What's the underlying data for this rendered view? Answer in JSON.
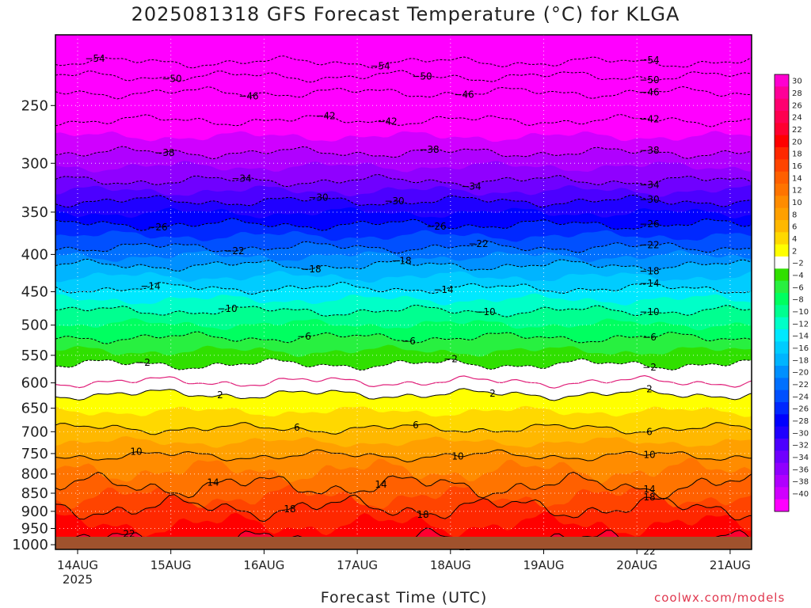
{
  "title": "2025081318 GFS Forecast Temperature (°C) for KLGA",
  "xlabel": "Forecast Time (UTC)",
  "credit": "coolwx.com/models",
  "chart_data": {
    "type": "heatmap",
    "title": "2025081318 GFS Forecast Temperature (°C) for KLGA",
    "xlabel": "Forecast Time (UTC)",
    "ylabel": "",
    "x_ticks": [
      "14AUG",
      "15AUG",
      "16AUG",
      "17AUG",
      "18AUG",
      "19AUG",
      "20AUG",
      "21AUG"
    ],
    "x_subtick": "2025",
    "x_range": [
      "2025-08-13 18Z",
      "2025-08-21 06Z"
    ],
    "y_ticks": [
      250,
      300,
      350,
      400,
      450,
      500,
      550,
      600,
      650,
      700,
      750,
      800,
      850,
      900,
      950,
      1000
    ],
    "y_range": [
      200,
      1015
    ],
    "y_reversed": true,
    "grid": true,
    "colorbar": {
      "position": "right",
      "ticks": [
        30,
        28,
        26,
        24,
        22,
        20,
        18,
        16,
        14,
        12,
        10,
        8,
        6,
        4,
        2,
        -2,
        -4,
        -6,
        -8,
        -10,
        -12,
        -14,
        -16,
        -18,
        -20,
        -22,
        -24,
        -26,
        -28,
        -30,
        -32,
        -34,
        -36,
        -38,
        -40
      ],
      "colors": [
        "#ff00d0",
        "#ff0098",
        "#ff0070",
        "#ff0050",
        "#ff0030",
        "#ff0000",
        "#ff2800",
        "#ff4400",
        "#ff6000",
        "#ff7400",
        "#ff8c00",
        "#ffa000",
        "#ffb800",
        "#ffd800",
        "#ffff00",
        "#ffffff",
        "#30e000",
        "#28f040",
        "#00ff60",
        "#00ff90",
        "#00ffc8",
        "#00e8ff",
        "#00ccff",
        "#00b4ff",
        "#0090ff",
        "#0070ff",
        "#0050ff",
        "#0028ff",
        "#0000ff",
        "#2000ff",
        "#4c00ff",
        "#7000ff",
        "#9000ff",
        "#b000ff",
        "#d000ff",
        "#ff00ff"
      ]
    },
    "contour_levels": [
      {
        "value": -54,
        "pressure": 218
      },
      {
        "value": -50,
        "pressure": 228
      },
      {
        "value": -46,
        "pressure": 240
      },
      {
        "value": -42,
        "pressure": 262
      },
      {
        "value": -38,
        "pressure": 290
      },
      {
        "value": -34,
        "pressure": 317
      },
      {
        "value": -30,
        "pressure": 338
      },
      {
        "value": -26,
        "pressure": 364
      },
      {
        "value": -22,
        "pressure": 391
      },
      {
        "value": -18,
        "pressure": 414
      },
      {
        "value": -14,
        "pressure": 445
      },
      {
        "value": -10,
        "pressure": 478
      },
      {
        "value": -6,
        "pressure": 520
      },
      {
        "value": -2,
        "pressure": 566
      },
      {
        "value": 2,
        "pressure": 622
      },
      {
        "value": 6,
        "pressure": 693
      },
      {
        "value": 10,
        "pressure": 755
      },
      {
        "value": 14,
        "pressure": 830
      },
      {
        "value": 18,
        "pressure": 890
      },
      {
        "value": 22,
        "pressure": 990
      }
    ],
    "zero_line_pressure": 598
  }
}
